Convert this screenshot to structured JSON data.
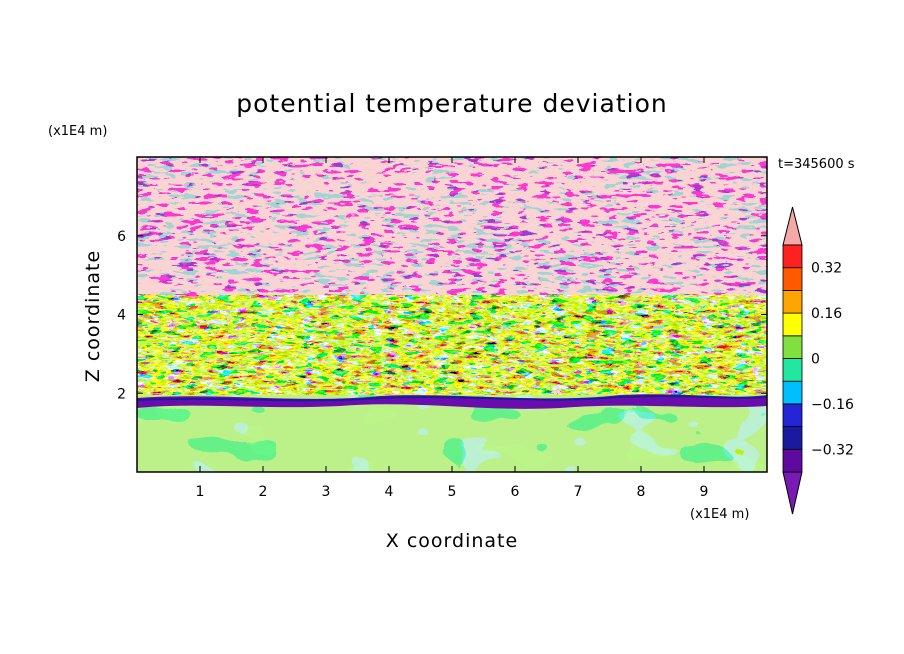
{
  "chart_data": {
    "type": "heatmap",
    "title": "potential temperature deviation",
    "xlabel": "X coordinate",
    "ylabel": "Z coordinate",
    "x_unit": "(x1E4 m)",
    "y_unit": "(x1E4 m)",
    "time_label": "t=345600 s",
    "xlim": [
      0,
      10
    ],
    "ylim": [
      0,
      8
    ],
    "x_ticks": [
      1,
      2,
      3,
      4,
      5,
      6,
      7,
      8,
      9
    ],
    "y_ticks": [
      2,
      4,
      6
    ],
    "colorbar": {
      "tick_labels": [
        "0.32",
        "0.16",
        "0",
        "−0.16",
        "−0.32"
      ],
      "levels": [
        -0.4,
        -0.32,
        -0.24,
        -0.16,
        -0.08,
        0,
        0.08,
        0.16,
        0.24,
        0.32,
        0.4
      ],
      "colors": [
        "#5f0a9e",
        "#1a1aa0",
        "#2525d8",
        "#00bfff",
        "#20e8a0",
        "#7fe040",
        "#ffff00",
        "#ffa500",
        "#ff5a00",
        "#ff2020",
        "#f5a8a8"
      ],
      "under_color": "#7a1ab5",
      "over_color": "#f5a8a8",
      "extend": "both"
    },
    "colors": {
      "purple": "#6a0dad",
      "pink": "#f5a8a8",
      "green_light": "#7fe040",
      "green_mint": "#20e8a0",
      "yellow": "#ffff00"
    }
  }
}
